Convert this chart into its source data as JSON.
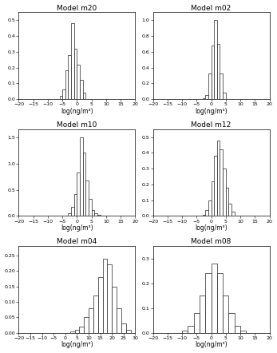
{
  "subplots": [
    {
      "title": "Model m20",
      "xlabel": "log(ng/m³)",
      "yticks": [
        0.0,
        0.1,
        0.2,
        0.3,
        0.4,
        0.5
      ],
      "xlim": [
        -20,
        20
      ],
      "ylim": [
        0,
        0.55
      ],
      "xtick_step": 5,
      "bar_lefts": [
        -6,
        -5,
        -4,
        -3,
        -2,
        -1,
        0,
        1,
        2
      ],
      "bar_heights": [
        0.02,
        0.06,
        0.18,
        0.28,
        0.48,
        0.32,
        0.22,
        0.12,
        0.04
      ],
      "bar_width": 1.0
    },
    {
      "title": "Model m02",
      "xlabel": "log(ng/m³)",
      "yticks": [
        0.0,
        0.2,
        0.4,
        0.6,
        0.8,
        1.0
      ],
      "xlim": [
        -20,
        20
      ],
      "ylim": [
        0,
        1.1
      ],
      "xtick_step": 5,
      "bar_lefts": [
        -3,
        -2,
        -1,
        0,
        1,
        2,
        3,
        4
      ],
      "bar_heights": [
        0.01,
        0.05,
        0.32,
        0.68,
        1.0,
        0.7,
        0.32,
        0.08
      ],
      "bar_width": 1.0
    },
    {
      "title": "Model m10",
      "xlabel": "log(ng/m³)",
      "yticks": [
        0.0,
        0.5,
        1.0,
        1.5
      ],
      "xlim": [
        -20,
        20
      ],
      "ylim": [
        0,
        1.65
      ],
      "xtick_step": 5,
      "bar_lefts": [
        -4,
        -3,
        -2,
        -1,
        0,
        1,
        2,
        3,
        4,
        5,
        6,
        7
      ],
      "bar_heights": [
        0.01,
        0.05,
        0.18,
        0.42,
        0.82,
        1.5,
        1.2,
        0.68,
        0.32,
        0.12,
        0.05,
        0.02
      ],
      "bar_width": 1.0
    },
    {
      "title": "Model m12",
      "xlabel": "log(ng/m³)",
      "yticks": [
        0.0,
        0.1,
        0.2,
        0.3,
        0.4,
        0.5
      ],
      "xlim": [
        -20,
        20
      ],
      "ylim": [
        0,
        0.55
      ],
      "xtick_step": 5,
      "bar_lefts": [
        -3,
        -2,
        -1,
        0,
        1,
        2,
        3,
        4,
        5,
        6,
        7
      ],
      "bar_heights": [
        0.01,
        0.04,
        0.1,
        0.22,
        0.38,
        0.48,
        0.42,
        0.3,
        0.18,
        0.08,
        0.03
      ],
      "bar_width": 1.0
    },
    {
      "title": "Model m04",
      "xlabel": "log(ng/m³)",
      "yticks": [
        0.0,
        0.05,
        0.1,
        0.15,
        0.2,
        0.25
      ],
      "xlim": [
        -20,
        30
      ],
      "ylim": [
        0,
        0.28
      ],
      "xtick_step": 5,
      "bar_lefts": [
        2,
        4,
        6,
        8,
        10,
        12,
        14,
        16,
        18,
        20,
        22,
        24,
        26
      ],
      "bar_heights": [
        0.005,
        0.01,
        0.02,
        0.05,
        0.08,
        0.12,
        0.18,
        0.24,
        0.22,
        0.15,
        0.08,
        0.03,
        0.01
      ],
      "bar_width": 2.0
    },
    {
      "title": "Model m08",
      "xlabel": "log(ng/m³)",
      "yticks": [
        0.0,
        0.1,
        0.2,
        0.3
      ],
      "xlim": [
        -20,
        20
      ],
      "ylim": [
        0,
        0.35
      ],
      "xtick_step": 5,
      "bar_lefts": [
        -10,
        -8,
        -6,
        -4,
        -2,
        0,
        2,
        4,
        6,
        8,
        10
      ],
      "bar_heights": [
        0.01,
        0.03,
        0.08,
        0.15,
        0.24,
        0.28,
        0.24,
        0.15,
        0.08,
        0.03,
        0.01
      ],
      "bar_width": 2.0
    }
  ],
  "figure_bgcolor": "#ffffff",
  "bar_facecolor": "#ffffff",
  "bar_edgecolor": "#222222",
  "title_fontsize": 6.5,
  "label_fontsize": 5.5,
  "tick_fontsize": 4.5,
  "bar_linewidth": 0.5
}
